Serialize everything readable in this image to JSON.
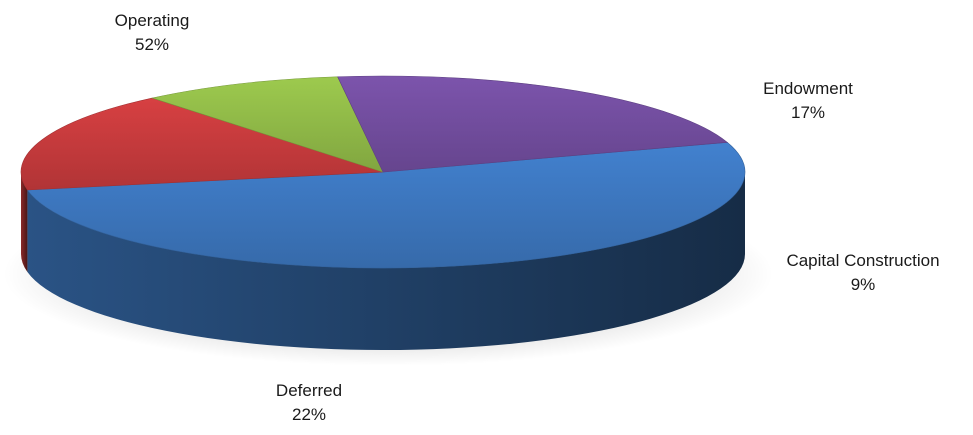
{
  "chart_data": {
    "type": "pie",
    "title": "",
    "labels": [
      "Operating",
      "Endowment",
      "Capital Construction",
      "Deferred"
    ],
    "values": [
      52,
      17,
      9,
      22
    ],
    "value_labels": [
      "52%",
      "17%",
      "9%",
      "22%"
    ],
    "colors": [
      "#3b73b9",
      "#c0393b",
      "#8cb446",
      "#6f4b9a"
    ],
    "style": "3d-pie",
    "legend": "none"
  }
}
